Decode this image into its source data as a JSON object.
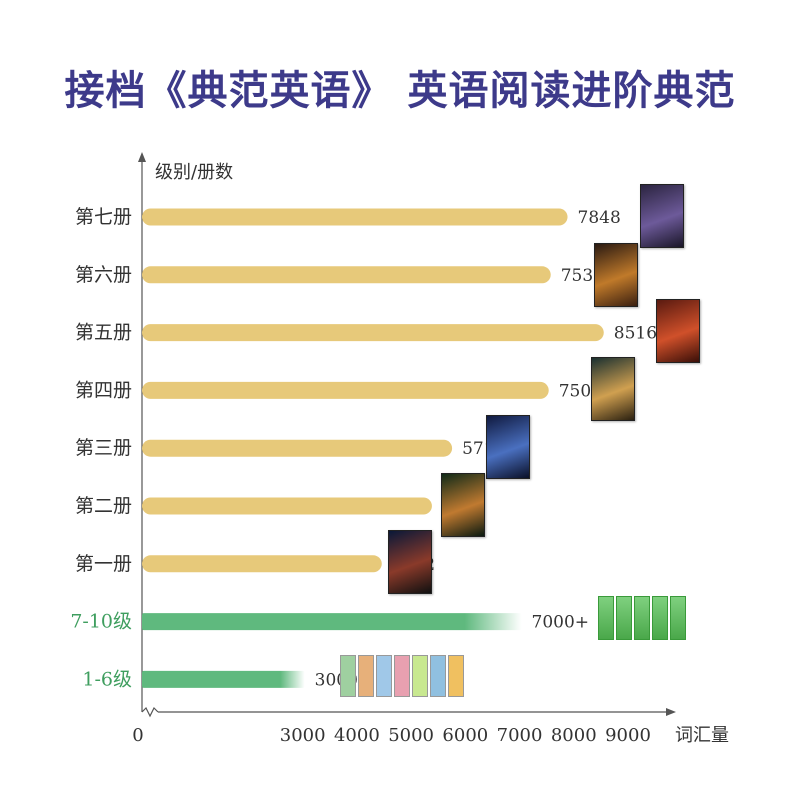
{
  "title": "接档《典范英语》 英语阅读进阶典范",
  "chart_data": {
    "type": "bar",
    "orientation": "horizontal",
    "ylabel": "级别/册数",
    "xlabel": "词汇量",
    "x_origin_label": "0",
    "x_ticks": [
      3000,
      4000,
      5000,
      6000,
      7000,
      8000,
      9000
    ],
    "xlim": [
      0,
      9800
    ],
    "grid": false,
    "bars": [
      {
        "label": "第七册",
        "value": 7848,
        "value_label": "7848",
        "color": "#e7c97a",
        "label_color": "#333333"
      },
      {
        "label": "第六册",
        "value": 7538,
        "value_label": "7538",
        "color": "#e7c97a",
        "label_color": "#333333"
      },
      {
        "label": "第五册",
        "value": 8516,
        "value_label": "8516",
        "color": "#e7c97a",
        "label_color": "#333333"
      },
      {
        "label": "第四册",
        "value": 7501,
        "value_label": "7501",
        "color": "#e7c97a",
        "label_color": "#333333"
      },
      {
        "label": "第三册",
        "value": 5719,
        "value_label": "5719",
        "color": "#e7c97a",
        "label_color": "#333333"
      },
      {
        "label": "第二册",
        "value": 5347,
        "value_label": "5347",
        "color": "#e7c97a",
        "label_color": "#333333"
      },
      {
        "label": "第一册",
        "value": 4422,
        "value_label": "4422",
        "color": "#e7c97a",
        "label_color": "#333333"
      },
      {
        "label": "7-10级",
        "value": 7000,
        "value_label": "7000+",
        "color": "#5fb97e",
        "label_color": "#3f9e5f"
      },
      {
        "label": "1-6级",
        "value": 3000,
        "value_label": "3000+",
        "color": "#5fb97e",
        "label_color": "#3f9e5f"
      }
    ]
  },
  "colors": {
    "title": "#3d3a8a",
    "gold_bar": "#e7c97a",
    "green_bar": "#5fb97e",
    "axis": "#555555"
  }
}
